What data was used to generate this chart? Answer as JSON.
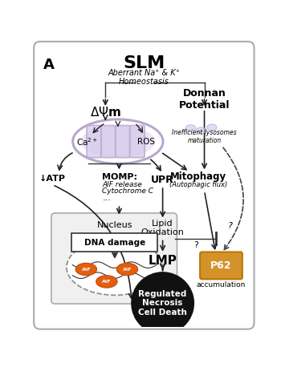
{
  "title": "SLM",
  "subtitle": "Aberrant Na⁺ & K⁺\nHomeostasis",
  "panel_label": "A",
  "mito_color": "#b8a8cc",
  "mito_fill": "#d8ccee",
  "p62_color": "#d4922a",
  "p62_edge": "#b87800",
  "cell_death_color": "#111111",
  "aif_color": "#e06010",
  "arrow_color": "#222222",
  "nucleus_fill": "#f0f0f0",
  "nucleus_edge": "#aaaaaa",
  "dna_oval_edge": "#888888"
}
